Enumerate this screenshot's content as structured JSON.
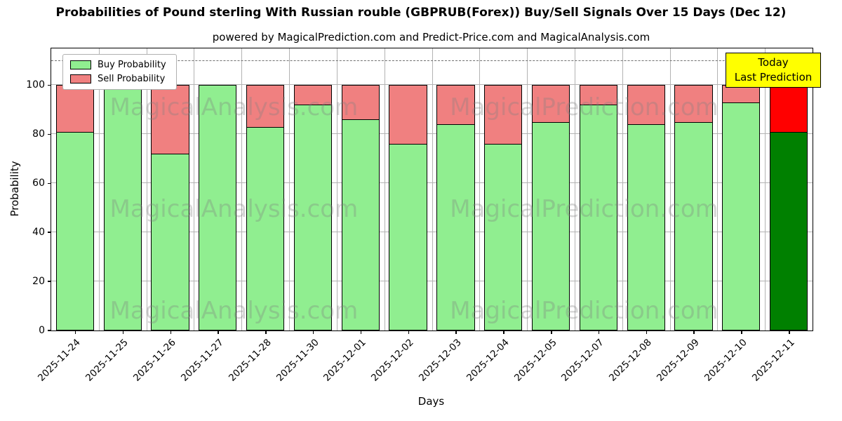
{
  "figure": {
    "title": "Probabilities of Pound sterling With Russian rouble (GBPRUB(Forex)) Buy/Sell Signals Over 15 Days (Dec 12)",
    "subtitle": "powered by MagicalPrediction.com and Predict-Price.com and MagicalAnalysis.com"
  },
  "legend": {
    "buy": "Buy Probability",
    "sell": "Sell Probability"
  },
  "annotation": {
    "line1": "Today",
    "line2": "Last Prediction"
  },
  "axes": {
    "xlabel": "Days",
    "ylabel": "Probability",
    "yticks": [
      0,
      20,
      40,
      60,
      80,
      100
    ],
    "ylim": [
      0,
      115
    ],
    "dashed_line_y": 110,
    "grid": true
  },
  "watermarks": [
    "MagicalAnalysis.com",
    "MagicalPrediction.com"
  ],
  "colors": {
    "buy": "#90EE90",
    "sell": "#F08080",
    "today_buy": "#008000",
    "today_sell": "#FF0000",
    "annotation_bg": "#FFFF00",
    "grid": "#B3B3B3"
  },
  "chart_data": {
    "type": "bar",
    "stacked": true,
    "title": "Probabilities of Pound sterling With Russian rouble (GBPRUB(Forex)) Buy/Sell Signals Over 15 Days (Dec 12)",
    "xlabel": "Days",
    "ylabel": "Probability",
    "ylim": [
      0,
      115
    ],
    "legend_position": "upper left",
    "categories": [
      "2025-11-24",
      "2025-11-25",
      "2025-11-26",
      "2025-11-27",
      "2025-11-28",
      "2025-11-30",
      "2025-12-01",
      "2025-12-02",
      "2025-12-03",
      "2025-12-04",
      "2025-12-05",
      "2025-12-07",
      "2025-12-08",
      "2025-12-09",
      "2025-12-10",
      "2025-12-11"
    ],
    "series": [
      {
        "name": "Buy Probability",
        "values": [
          81,
          100,
          72,
          100,
          83,
          92,
          86,
          76,
          84,
          76,
          85,
          92,
          84,
          85,
          93,
          81
        ]
      },
      {
        "name": "Sell Probability",
        "values": [
          19,
          0,
          28,
          0,
          17,
          8,
          14,
          24,
          16,
          24,
          15,
          8,
          16,
          15,
          7,
          19
        ]
      }
    ],
    "today_index": 15
  }
}
